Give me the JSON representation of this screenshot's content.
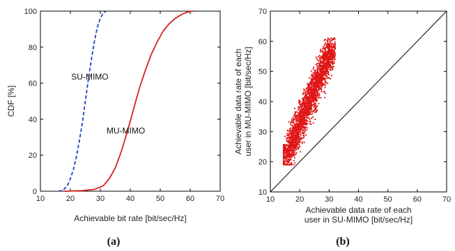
{
  "chart_data": [
    {
      "panel": "(a)",
      "type": "line",
      "xlabel": "Achievable bit rate [bit/sec/Hz]",
      "ylabel": "CDF [%]",
      "xlim": [
        10,
        70
      ],
      "ylim": [
        0,
        100
      ],
      "xticks": [
        10,
        20,
        30,
        40,
        50,
        60,
        70
      ],
      "yticks": [
        0,
        20,
        40,
        60,
        80,
        100
      ],
      "grid": false,
      "series": [
        {
          "name": "SU-MIMO",
          "color": "#1f3fc8",
          "style": "dashed",
          "points": [
            [
              16,
              0
            ],
            [
              17.5,
              0.5
            ],
            [
              19,
              3
            ],
            [
              20,
              7
            ],
            [
              21,
              12
            ],
            [
              22,
              19
            ],
            [
              23,
              28
            ],
            [
              24,
              38
            ],
            [
              25,
              50
            ],
            [
              26,
              62
            ],
            [
              27,
              73
            ],
            [
              28,
              83
            ],
            [
              29,
              91
            ],
            [
              30,
              96
            ],
            [
              31,
              99
            ],
            [
              32,
              100
            ]
          ]
        },
        {
          "name": "MU-MIMO",
          "color": "#d42020",
          "style": "solid",
          "points": [
            [
              18,
              0
            ],
            [
              24,
              0.3
            ],
            [
              28,
              1
            ],
            [
              31,
              3
            ],
            [
              33,
              7
            ],
            [
              35,
              13
            ],
            [
              37,
              22
            ],
            [
              39,
              33
            ],
            [
              41,
              45
            ],
            [
              43,
              57
            ],
            [
              45,
              67
            ],
            [
              47,
              76
            ],
            [
              49,
              83
            ],
            [
              51,
              89
            ],
            [
              53,
              93
            ],
            [
              55,
              96
            ],
            [
              57,
              98
            ],
            [
              59,
              99.5
            ],
            [
              61,
              100
            ]
          ]
        }
      ],
      "annotations": [
        {
          "text": "SU-MIMO",
          "x": 26.5,
          "y": 62
        },
        {
          "text": "MU-MIMO",
          "x": 38.5,
          "y": 32
        }
      ]
    },
    {
      "panel": "(b)",
      "type": "scatter",
      "xlabel": [
        "Achievable data rate of each",
        "user in SU-MIMO [bit/sec/Hz]"
      ],
      "ylabel": [
        "Achievable data rate of each",
        "user in MU-MIMO [bit/sec/Hz]"
      ],
      "xlim": [
        10,
        70
      ],
      "ylim": [
        10,
        70
      ],
      "xticks": [
        10,
        20,
        30,
        40,
        50,
        60,
        70
      ],
      "yticks": [
        10,
        20,
        30,
        40,
        50,
        60,
        70
      ],
      "grid": false,
      "scatter_color": "#e01818",
      "reference_line": [
        [
          10,
          10
        ],
        [
          70,
          70
        ]
      ],
      "cloud_axis": [
        [
          15,
          21
        ],
        [
          31,
          58
        ]
      ],
      "cloud_x_range": [
        14.5,
        32
      ],
      "cloud_y_range": [
        19,
        61
      ],
      "cloud_spread": 4.5
    }
  ],
  "captions": [
    "(a)",
    "(b)"
  ]
}
